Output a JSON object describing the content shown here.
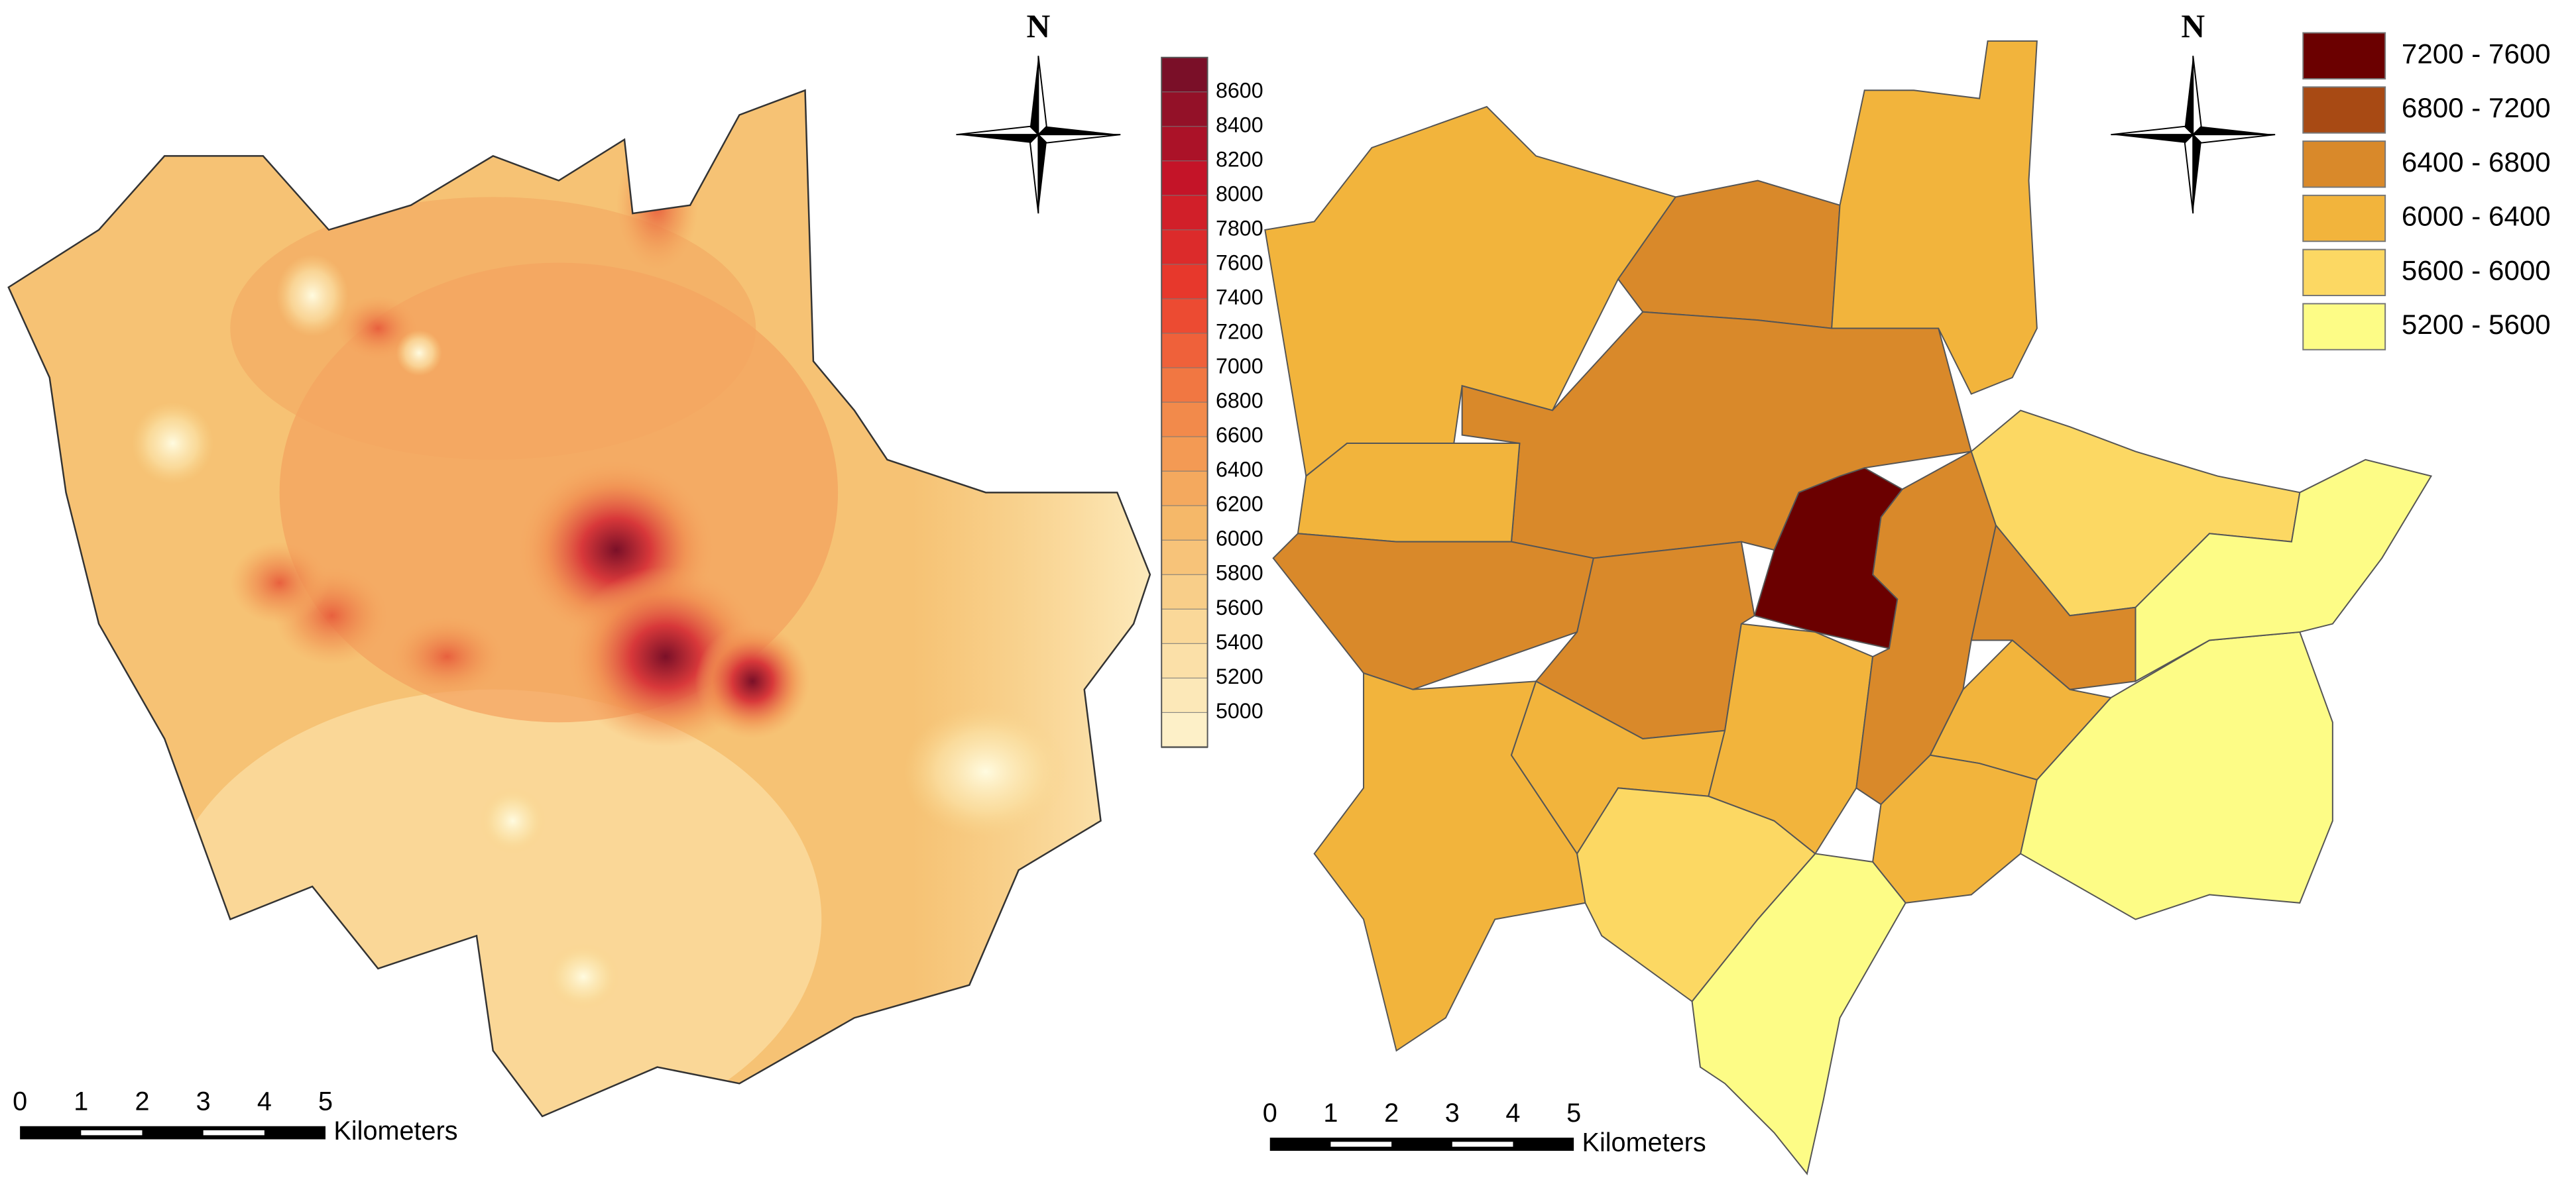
{
  "left_map": {
    "north_label": "N",
    "colorbar": {
      "labels": [
        "8600",
        "8400",
        "8200",
        "8000",
        "7800",
        "7600",
        "7400",
        "7200",
        "7000",
        "6800",
        "6600",
        "6400",
        "6200",
        "6000",
        "5800",
        "5600",
        "5400",
        "5200",
        "5000"
      ]
    },
    "scale_bar": {
      "ticks": [
        "0",
        "1",
        "2",
        "3",
        "4",
        "5"
      ],
      "unit": "Kilometers"
    }
  },
  "right_map": {
    "north_label": "N",
    "legend": {
      "classes": [
        {
          "label": "7200 - 7600",
          "color": "#6b0000"
        },
        {
          "label": "6800 - 7200",
          "color": "#a84a14"
        },
        {
          "label": "6400 - 6800",
          "color": "#d9892a"
        },
        {
          "label": "6000 - 6400",
          "color": "#f2b43c"
        },
        {
          "label": "5600 - 6000",
          "color": "#fcd863"
        },
        {
          "label": "5200 - 5600",
          "color": "#fdfc86"
        }
      ]
    },
    "scale_bar": {
      "ticks": [
        "0",
        "1",
        "2",
        "3",
        "4",
        "5"
      ],
      "unit": "Kilometers"
    }
  }
}
